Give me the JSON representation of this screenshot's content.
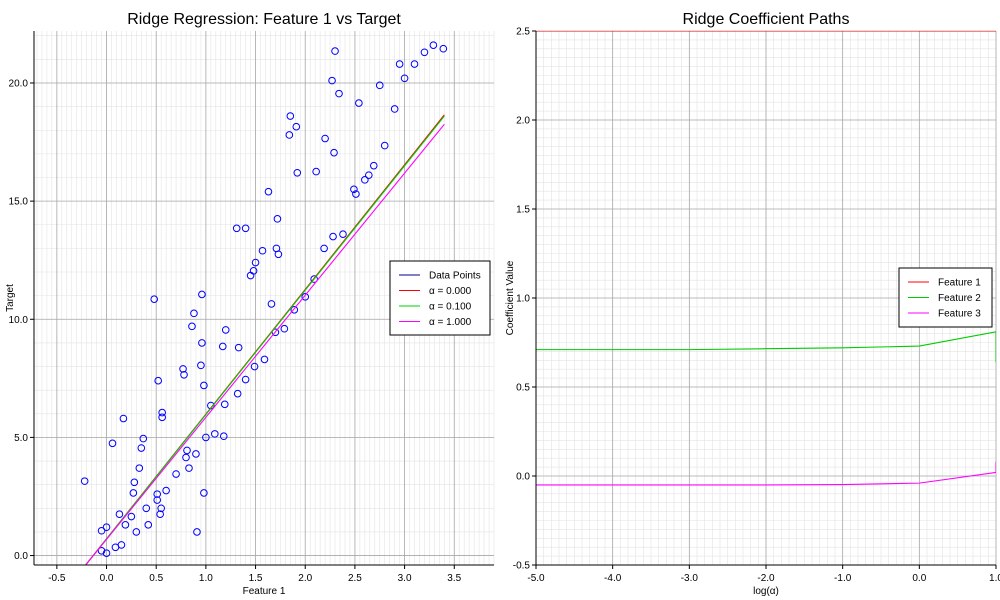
{
  "chart_data": [
    {
      "type": "scatter",
      "title": "Ridge Regression: Feature 1 vs Target",
      "xlabel": "Feature 1",
      "ylabel": "Target",
      "xlim": [
        -0.73,
        3.9
      ],
      "ylim": [
        -0.4,
        22.2
      ],
      "xticks": [
        -0.5,
        0.0,
        0.5,
        1.0,
        1.5,
        2.0,
        2.5,
        3.0,
        3.5
      ],
      "xtick_labels": [
        "-0.5",
        "0.0",
        "0.5",
        "1.0",
        "1.5",
        "2.0",
        "2.5",
        "3.0",
        "3.5"
      ],
      "yticks": [
        0,
        5,
        10,
        15,
        20
      ],
      "ytick_labels": [
        "0.0",
        "5.0",
        "10.0",
        "15.0",
        "20.0"
      ],
      "grid": true,
      "minor_grid": true,
      "legend": "center-right",
      "legend_entries": [
        {
          "label": "Data Points",
          "color": "#00008b"
        },
        {
          "label": "α = 0.000",
          "color": "#ff0000"
        },
        {
          "label": "α = 0.100",
          "color": "#00cc00"
        },
        {
          "label": "α = 1.000",
          "color": "#ff00ff"
        }
      ],
      "points": [
        [
          -0.22,
          3.15
        ],
        [
          -0.05,
          0.2
        ],
        [
          -0.05,
          1.05
        ],
        [
          0.0,
          1.2
        ],
        [
          0.0,
          0.1
        ],
        [
          0.06,
          4.75
        ],
        [
          0.09,
          0.35
        ],
        [
          0.13,
          1.75
        ],
        [
          0.15,
          0.45
        ],
        [
          0.17,
          5.8
        ],
        [
          0.19,
          1.3
        ],
        [
          0.25,
          1.65
        ],
        [
          0.27,
          2.65
        ],
        [
          0.28,
          3.1
        ],
        [
          0.3,
          1.0
        ],
        [
          0.33,
          3.7
        ],
        [
          0.35,
          4.55
        ],
        [
          0.37,
          4.95
        ],
        [
          0.4,
          2.0
        ],
        [
          0.42,
          1.3
        ],
        [
          0.48,
          10.85
        ],
        [
          0.51,
          2.6
        ],
        [
          0.51,
          2.35
        ],
        [
          0.52,
          7.4
        ],
        [
          0.54,
          1.75
        ],
        [
          0.55,
          2.0
        ],
        [
          0.56,
          6.05
        ],
        [
          0.56,
          5.85
        ],
        [
          0.6,
          2.75
        ],
        [
          0.7,
          3.45
        ],
        [
          0.77,
          7.9
        ],
        [
          0.78,
          7.65
        ],
        [
          0.8,
          4.15
        ],
        [
          0.81,
          4.45
        ],
        [
          0.83,
          3.7
        ],
        [
          0.86,
          9.7
        ],
        [
          0.88,
          10.25
        ],
        [
          0.9,
          4.3
        ],
        [
          0.91,
          1.0
        ],
        [
          0.95,
          8.05
        ],
        [
          0.96,
          11.05
        ],
        [
          0.96,
          9.0
        ],
        [
          0.98,
          2.65
        ],
        [
          0.98,
          7.2
        ],
        [
          1.0,
          5.0
        ],
        [
          1.05,
          6.35
        ],
        [
          1.09,
          5.15
        ],
        [
          1.17,
          8.85
        ],
        [
          1.18,
          5.05
        ],
        [
          1.19,
          6.4
        ],
        [
          1.2,
          9.55
        ],
        [
          1.31,
          13.85
        ],
        [
          1.32,
          6.85
        ],
        [
          1.33,
          8.8
        ],
        [
          1.4,
          13.85
        ],
        [
          1.4,
          7.45
        ],
        [
          1.45,
          11.85
        ],
        [
          1.48,
          12.05
        ],
        [
          1.49,
          8.0
        ],
        [
          1.5,
          12.4
        ],
        [
          1.57,
          12.9
        ],
        [
          1.59,
          8.3
        ],
        [
          1.63,
          15.4
        ],
        [
          1.66,
          10.65
        ],
        [
          1.7,
          9.45
        ],
        [
          1.71,
          13.0
        ],
        [
          1.72,
          14.25
        ],
        [
          1.73,
          12.75
        ],
        [
          1.79,
          9.6
        ],
        [
          1.84,
          17.8
        ],
        [
          1.85,
          18.6
        ],
        [
          1.89,
          10.4
        ],
        [
          1.91,
          18.15
        ],
        [
          1.92,
          16.2
        ],
        [
          2.0,
          10.95
        ],
        [
          2.09,
          11.7
        ],
        [
          2.11,
          16.25
        ],
        [
          2.19,
          13.0
        ],
        [
          2.2,
          17.65
        ],
        [
          2.27,
          20.1
        ],
        [
          2.28,
          13.5
        ],
        [
          2.29,
          17.05
        ],
        [
          2.3,
          21.35
        ],
        [
          2.34,
          19.55
        ],
        [
          2.38,
          13.6
        ],
        [
          2.49,
          15.5
        ],
        [
          2.51,
          15.3
        ],
        [
          2.54,
          19.15
        ],
        [
          2.6,
          15.9
        ],
        [
          2.64,
          16.1
        ],
        [
          2.69,
          16.5
        ],
        [
          2.75,
          19.9
        ],
        [
          2.8,
          17.35
        ],
        [
          2.9,
          18.9
        ],
        [
          2.95,
          20.8
        ],
        [
          3.0,
          20.2
        ],
        [
          3.1,
          20.8
        ],
        [
          3.2,
          21.3
        ],
        [
          3.29,
          21.6
        ],
        [
          3.39,
          21.45
        ]
      ],
      "series": [
        {
          "name": "α = 0.000",
          "color": "#ff0000",
          "x": [
            -0.21,
            3.4
          ],
          "y": [
            -0.4,
            18.65
          ]
        },
        {
          "name": "α = 0.100",
          "color": "#00cc00",
          "x": [
            -0.21,
            3.4
          ],
          "y": [
            -0.4,
            18.6
          ]
        },
        {
          "name": "α = 1.000",
          "color": "#ff00ff",
          "x": [
            -0.21,
            3.4
          ],
          "y": [
            -0.4,
            18.25
          ]
        }
      ]
    },
    {
      "type": "line",
      "title": "Ridge Coefficient Paths",
      "xlabel": "log(α)",
      "ylabel": "Coefficient Value",
      "xlim": [
        -5.0,
        1.0
      ],
      "ylim": [
        -0.5,
        2.5
      ],
      "xticks": [
        -5,
        -4,
        -3,
        -2,
        -1,
        0,
        1
      ],
      "xtick_labels": [
        "-5.0",
        "-4.0",
        "-3.0",
        "-2.0",
        "-1.0",
        "0.0",
        "1.0"
      ],
      "yticks": [
        -0.5,
        0.0,
        0.5,
        1.0,
        1.5,
        2.0,
        2.5
      ],
      "ytick_labels": [
        "-0.5",
        "0.0",
        "0.5",
        "1.0",
        "1.5",
        "2.0",
        "2.5"
      ],
      "grid": true,
      "minor_grid": true,
      "legend": "center-right",
      "series": [
        {
          "name": "Feature 1",
          "color": "#ff0000",
          "x": [
            -5,
            -4,
            -3,
            -2,
            -1,
            0,
            1
          ],
          "y": [
            2.5,
            2.5,
            2.5,
            2.5,
            2.5,
            2.5,
            2.5
          ]
        },
        {
          "name": "Feature 2",
          "color": "#00cc00",
          "x": [
            -5,
            -4,
            -3,
            -2,
            -1,
            0,
            1,
            1
          ],
          "y": [
            0.71,
            0.71,
            0.71,
            0.715,
            0.72,
            0.73,
            0.81,
            0.64
          ]
        },
        {
          "name": "Feature 3",
          "color": "#ff00ff",
          "x": [
            -5,
            -4,
            -3,
            -2,
            -1,
            0,
            1,
            1
          ],
          "y": [
            -0.05,
            -0.05,
            -0.05,
            -0.05,
            -0.048,
            -0.04,
            0.02,
            0.08
          ]
        }
      ]
    }
  ]
}
